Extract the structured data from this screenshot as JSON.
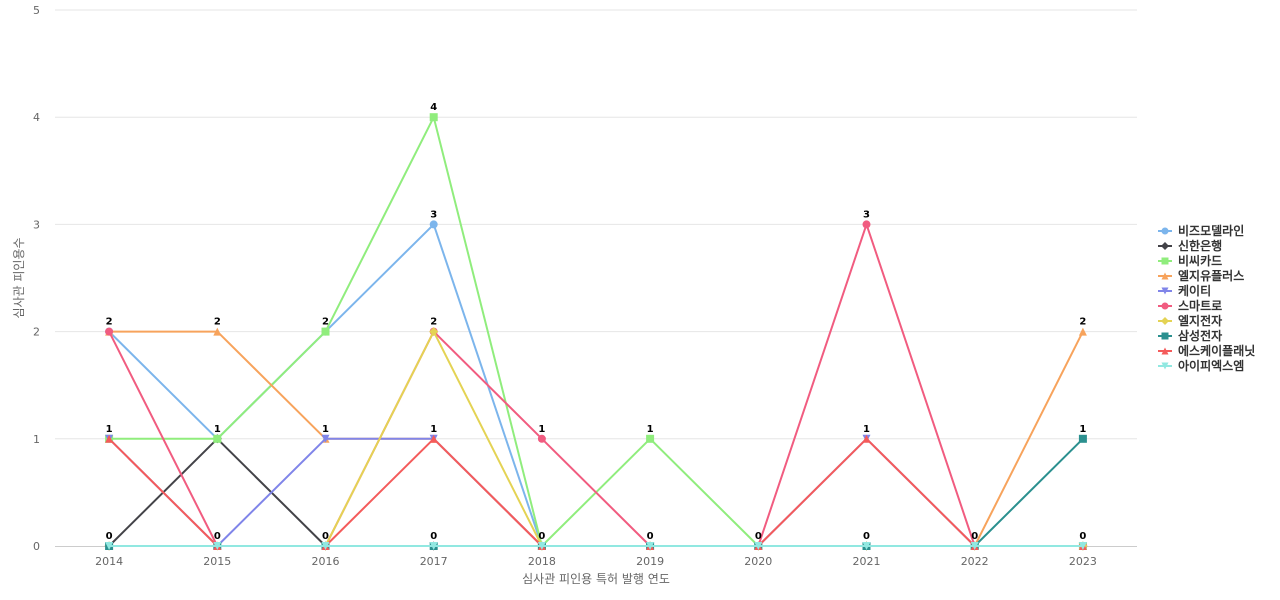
{
  "chart_data": {
    "type": "line",
    "title": "",
    "xlabel": "심사관 피인용 특허 발행 연도",
    "ylabel": "심사관 피인용수",
    "x": [
      "2014",
      "2015",
      "2016",
      "2017",
      "2018",
      "2019",
      "2020",
      "2021",
      "2022",
      "2023"
    ],
    "ylim": [
      0,
      5
    ],
    "yticks": [
      "0",
      "1",
      "2",
      "3",
      "4",
      "5"
    ],
    "grid": true,
    "legend_position": "right",
    "series": [
      {
        "name": "비즈모델라인",
        "color": "#7cb5ec",
        "marker": "circle",
        "values": [
          2,
          1,
          2,
          3,
          0,
          0,
          0,
          0,
          0,
          0
        ]
      },
      {
        "name": "신한은행",
        "color": "#434348",
        "marker": "diamond",
        "values": [
          0,
          1,
          0,
          0,
          0,
          0,
          0,
          0,
          0,
          0
        ]
      },
      {
        "name": "비씨카드",
        "color": "#90ed7d",
        "marker": "square",
        "values": [
          1,
          1,
          2,
          4,
          0,
          1,
          0,
          0,
          0,
          0
        ]
      },
      {
        "name": "엘지유플러스",
        "color": "#f7a35c",
        "marker": "triangle",
        "values": [
          2,
          2,
          1,
          1,
          0,
          0,
          0,
          0,
          0,
          2
        ]
      },
      {
        "name": "케이티",
        "color": "#8085e9",
        "marker": "triangle-down",
        "values": [
          1,
          0,
          1,
          1,
          0,
          0,
          0,
          1,
          0,
          0
        ]
      },
      {
        "name": "스마트로",
        "color": "#f15c80",
        "marker": "circle",
        "values": [
          2,
          0,
          0,
          2,
          1,
          0,
          0,
          3,
          0,
          0
        ]
      },
      {
        "name": "엘지전자",
        "color": "#e4d354",
        "marker": "diamond",
        "values": [
          0,
          0,
          0,
          2,
          0,
          0,
          0,
          0,
          0,
          0
        ]
      },
      {
        "name": "삼성전자",
        "color": "#2b908f",
        "marker": "square",
        "values": [
          0,
          0,
          0,
          0,
          0,
          0,
          0,
          0,
          0,
          1
        ]
      },
      {
        "name": "에스케이플래닛",
        "color": "#f45b5b",
        "marker": "triangle",
        "values": [
          1,
          0,
          0,
          1,
          0,
          0,
          0,
          1,
          0,
          0
        ]
      },
      {
        "name": "아이피엑스엠",
        "color": "#91e8e1",
        "marker": "triangle-down",
        "values": [
          0,
          0,
          0,
          0,
          0,
          0,
          0,
          0,
          0,
          0
        ]
      }
    ],
    "data_labels": {
      "2014": [
        "2",
        "1",
        "0"
      ],
      "2015": [
        "2",
        "1",
        "0"
      ],
      "2016": [
        "2",
        "1",
        "0"
      ],
      "2017": [
        "4",
        "3",
        "2",
        "1",
        "0"
      ],
      "2018": [
        "1",
        "0"
      ],
      "2019": [
        "1",
        "0"
      ],
      "2020": [
        "0"
      ],
      "2021": [
        "3",
        "1",
        "0"
      ],
      "2022": [
        "0"
      ],
      "2023": [
        "2",
        "1",
        "0"
      ]
    }
  }
}
